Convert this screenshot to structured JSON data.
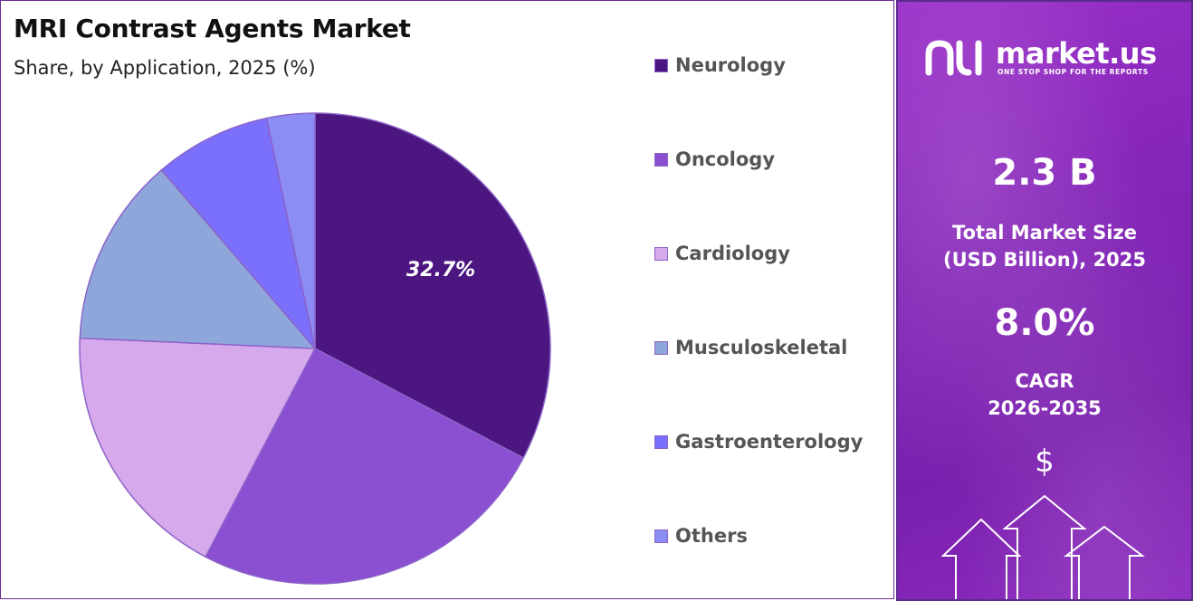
{
  "chart_data": {
    "type": "pie",
    "title": "MRI Contrast Agents Market",
    "subtitle": "Share, by Application, 2025 (%)",
    "slices": [
      {
        "name": "Neurology",
        "value": 32.7,
        "color": "#4b1680"
      },
      {
        "name": "Oncology",
        "value": 25.0,
        "color": "#8b4fd1"
      },
      {
        "name": "Cardiology",
        "value": 18.0,
        "color": "#d6a8ec"
      },
      {
        "name": "Musculoskeletal",
        "value": 13.0,
        "color": "#8fa6db"
      },
      {
        "name": "Gastroenterology",
        "value": 8.0,
        "color": "#7a70fb"
      },
      {
        "name": "Others",
        "value": 3.3,
        "color": "#8c8cf5"
      }
    ],
    "data_labels": [
      {
        "slice": "Neurology",
        "text": "32.7%"
      }
    ],
    "legend_position": "right"
  },
  "side_panel": {
    "brand": "market.us",
    "tagline": "ONE STOP SHOP FOR THE REPORTS",
    "market_size_value": "2.3 B",
    "market_size_label_line1": "Total Market Size",
    "market_size_label_line2": "(USD Billion), 2025",
    "cagr_value": "8.0%",
    "cagr_label_line1": "CAGR",
    "cagr_label_line2": "2026-2035",
    "dollar_symbol": "$",
    "icons": [
      "market-us-logo-icon",
      "dollar-icon",
      "up-arrow-icon"
    ]
  }
}
